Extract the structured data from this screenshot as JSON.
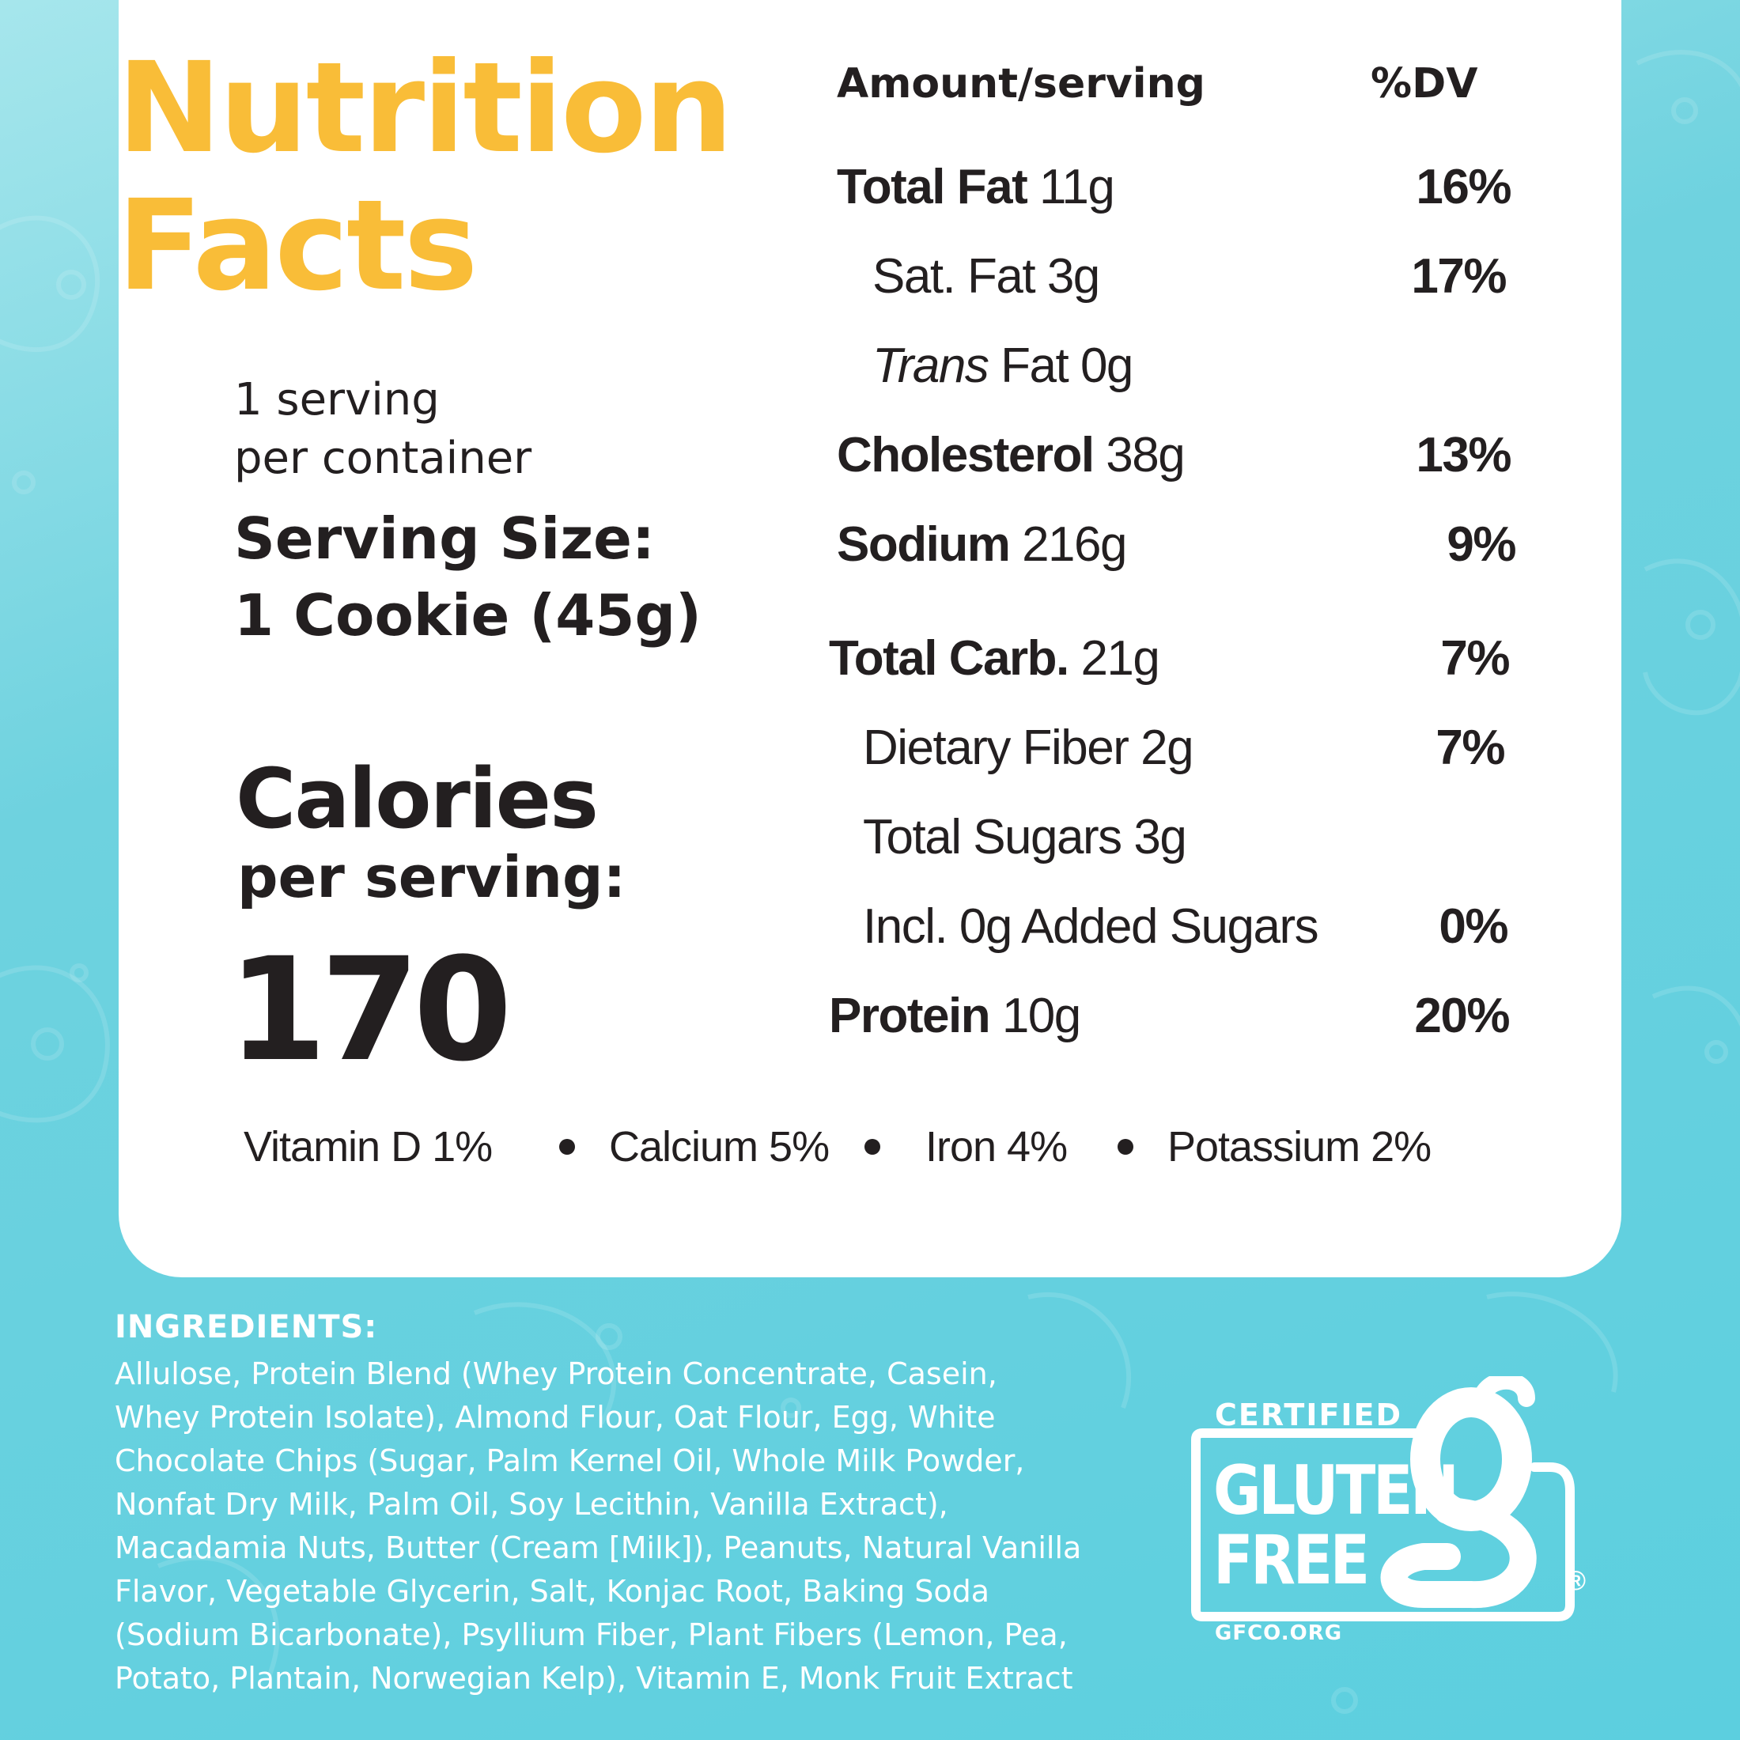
{
  "title": {
    "line1": "Nutrition",
    "line2": "Facts"
  },
  "servings": {
    "line1": "1 serving",
    "line2": "per container"
  },
  "serving_size": {
    "label": "Serving Size:",
    "value": "1 Cookie (45g)"
  },
  "calories": {
    "label": "Calories",
    "sublabel": "per serving:",
    "value": "170"
  },
  "table": {
    "header_amount": "Amount/serving",
    "header_dv": "%DV",
    "rows": [
      {
        "name": "Total Fat",
        "amount": "11g",
        "dv": "16%"
      },
      {
        "name": "Sat. Fat",
        "amount": "3g",
        "dv": "17%"
      },
      {
        "name_italic": "Trans",
        "name": "Fat",
        "amount": "0g",
        "dv": ""
      },
      {
        "name": "Cholesterol",
        "amount": "38g",
        "dv": "13%"
      },
      {
        "name": "Sodium",
        "amount": "216g",
        "dv": "9%"
      },
      {
        "name": "Total Carb.",
        "amount": "21g",
        "dv": "7%"
      },
      {
        "name": "Dietary Fiber",
        "amount": "2g",
        "dv": "7%"
      },
      {
        "name": "Total Sugars 3g",
        "amount": "",
        "dv": ""
      },
      {
        "name": "Incl. 0g Added Sugars",
        "amount": "",
        "dv": "0%"
      },
      {
        "name": "Protein",
        "amount": "10g",
        "dv": "20%"
      }
    ]
  },
  "vitamins": [
    "Vitamin D 1%",
    "Calcium 5%",
    "Iron 4%",
    "Potassium 2%"
  ],
  "ingredients": {
    "heading": "INGREDIENTS:",
    "lines": [
      "Allulose, Protein Blend (Whey Protein Concentrate, Casein,",
      "Whey Protein Isolate), Almond Flour, Oat Flour, Egg, White",
      "Chocolate Chips (Sugar, Palm Kernel Oil, Whole Milk Powder,",
      "Nonfat Dry Milk, Palm Oil, Soy Lecithin, Vanilla Extract),",
      "Macadamia Nuts, Butter (Cream [Milk]), Peanuts, Natural Vanilla",
      "Flavor, Vegetable Glycerin, Salt, Konjac Root, Baking Soda",
      "(Sodium Bicarbonate), Psyllium Fiber, Plant Fibers (Lemon, Pea,",
      "Potato, Plantain, Norwegian Kelp), Vitamin E, Monk Fruit Extract"
    ]
  },
  "badge": {
    "certified": "CERTIFIED",
    "word1": "GLUTEN",
    "word2": "FREE",
    "url": "GFCO.ORG",
    "registered": "®",
    "icon": "gluten-free-g-icon",
    "color": "#ffffff"
  },
  "colors": {
    "title": "#f9bd38",
    "text": "#231f20",
    "background": "#5ccfdf",
    "card": "#ffffff"
  }
}
